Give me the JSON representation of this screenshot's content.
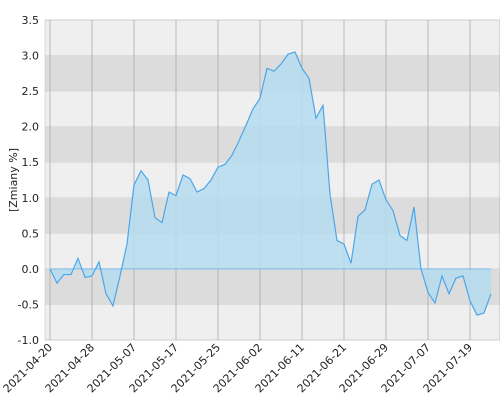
{
  "chart_data": {
    "type": "area",
    "y_label": "[Zmiany %]",
    "categories": [
      "2021-04-20",
      null,
      null,
      null,
      null,
      null,
      "2021-04-28",
      null,
      null,
      null,
      null,
      null,
      "2021-05-07",
      null,
      null,
      null,
      null,
      null,
      "2021-05-17",
      null,
      null,
      null,
      null,
      null,
      "2021-05-25",
      null,
      null,
      null,
      null,
      null,
      "2021-06-02",
      null,
      null,
      null,
      null,
      null,
      "2021-06-11",
      null,
      null,
      null,
      null,
      null,
      "2021-06-21",
      null,
      null,
      null,
      null,
      null,
      "2021-06-29",
      null,
      null,
      null,
      null,
      null,
      "2021-07-07",
      null,
      null,
      null,
      null,
      null,
      "2021-07-19",
      null,
      null,
      null
    ],
    "values": [
      0.0,
      -0.2,
      -0.08,
      -0.08,
      0.15,
      -0.12,
      -0.1,
      0.1,
      -0.35,
      -0.52,
      -0.1,
      0.35,
      1.18,
      1.38,
      1.25,
      0.72,
      0.65,
      1.08,
      1.03,
      1.32,
      1.27,
      1.08,
      1.13,
      1.25,
      1.43,
      1.47,
      1.6,
      1.8,
      2.02,
      2.25,
      2.4,
      2.82,
      2.78,
      2.88,
      3.02,
      3.05,
      2.82,
      2.68,
      2.12,
      2.3,
      1.05,
      0.4,
      0.35,
      0.08,
      0.74,
      0.83,
      1.19,
      1.25,
      0.97,
      0.82,
      0.47,
      0.4,
      0.87,
      0.0,
      -0.33,
      -0.48,
      -0.1,
      -0.35,
      -0.13,
      -0.1,
      -0.45,
      -0.65,
      -0.62,
      -0.35
    ],
    "color": "#4da6e8",
    "fill_color": "#b4dcee",
    "ylim": [
      -1.0,
      3.5
    ],
    "yticks": [
      {
        "value": -1.0,
        "label": "-1.0"
      },
      {
        "value": -0.5,
        "label": "-0.5"
      },
      {
        "value": 0.0,
        "label": "0.0"
      },
      {
        "value": 0.5,
        "label": "0.5"
      },
      {
        "value": 1.0,
        "label": "1.0"
      },
      {
        "value": 1.5,
        "label": "1.5"
      },
      {
        "value": 2.0,
        "label": "2.0"
      },
      {
        "value": 2.5,
        "label": "2.5"
      },
      {
        "value": 3.0,
        "label": "3.0"
      },
      {
        "value": 3.5,
        "label": "3.5"
      }
    ],
    "grid": true
  }
}
